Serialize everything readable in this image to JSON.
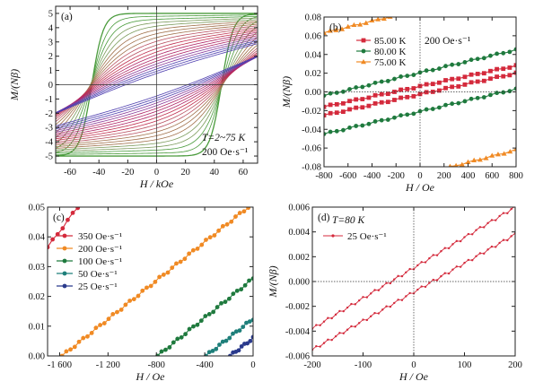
{
  "chart_data": [
    {
      "type": "line",
      "panel_label": "(a)",
      "xlabel": "H / kOe",
      "ylabel": "M/(Nβ)",
      "xlim": [
        -70,
        70
      ],
      "ylim": [
        -5.5,
        5.5
      ],
      "xticks": [
        -60,
        -40,
        -20,
        0,
        20,
        40,
        60
      ],
      "yticks": [
        -5,
        -4,
        -3,
        -2,
        -1,
        0,
        1,
        2,
        3,
        4,
        5
      ],
      "grid": false,
      "annotations": [
        "T=2~75 K",
        "200 Oe·s⁻¹"
      ],
      "loop_family": {
        "count": 20,
        "outer_saturation": 5.0,
        "outer_coercive_field": 45,
        "inner_slope_at_70kOe": 1.8,
        "colors": [
          "#4a9b3c",
          "#7a9a5a",
          "#a0704a",
          "#b85060",
          "#c03050",
          "#b02868",
          "#8a3a9a",
          "#5040b0"
        ]
      }
    },
    {
      "type": "line",
      "panel_label": "(b)",
      "xlabel": "H / Oe",
      "ylabel": "M/(Nβ)",
      "xlim": [
        -800,
        800
      ],
      "ylim": [
        -0.08,
        0.08
      ],
      "xticks": [
        -800,
        -600,
        -400,
        -200,
        0,
        200,
        400,
        600,
        800
      ],
      "yticks": [
        -0.08,
        -0.06,
        -0.04,
        -0.02,
        0.0,
        0.02,
        0.04,
        0.06,
        0.08
      ],
      "ytick_labels": [
        "-0.08",
        "-0.06",
        "-0.04",
        "-0.02",
        "0.00",
        "0.02",
        "0.04",
        "0.06",
        "0.08"
      ],
      "legend_position": "top-left",
      "annotations": [
        "200 Oe·s⁻¹"
      ],
      "series": [
        {
          "name": "85.00 K",
          "color": "#d42a3c",
          "marker": "square",
          "up": {
            "x": [
              -800,
              800
            ],
            "y": [
              -0.025,
              0.02
            ]
          },
          "down": {
            "x": [
              -800,
              800
            ],
            "y": [
              -0.016,
              0.028
            ]
          }
        },
        {
          "name": "80.00 K",
          "color": "#1f7a3e",
          "marker": "circle",
          "up": {
            "x": [
              -800,
              800
            ],
            "y": [
              -0.045,
              0.003
            ]
          },
          "down": {
            "x": [
              -800,
              800
            ],
            "y": [
              -0.004,
              0.045
            ]
          }
        },
        {
          "name": "75.00 K",
          "color": "#f08a24",
          "marker": "triangle",
          "up": {
            "x": [
              200,
              800
            ],
            "y": [
              -0.082,
              -0.062
            ]
          },
          "down": {
            "x": [
              -800,
              -200
            ],
            "y": [
              0.063,
              0.082
            ]
          }
        }
      ]
    },
    {
      "type": "line",
      "panel_label": "(c)",
      "xlabel": "H / Oe",
      "ylabel": "",
      "xlim": [
        -1700,
        0
      ],
      "ylim": [
        0,
        0.05
      ],
      "xticks": [
        -1600,
        -1200,
        -800,
        -400,
        0
      ],
      "xtick_labels": [
        "-1 600",
        "-1 200",
        "-800",
        "-400",
        "0"
      ],
      "yticks": [
        0,
        0.01,
        0.02,
        0.03,
        0.04,
        0.05
      ],
      "ytick_labels": [
        "0.00",
        "0.01",
        "0.02",
        "0.03",
        "0.04",
        "0.05"
      ],
      "legend_position": "top-left",
      "series": [
        {
          "name": "350 Oe·s⁻¹",
          "color": "#d42a3c",
          "x": [
            -1700,
            -1450
          ],
          "y": [
            0.0365,
            0.05
          ]
        },
        {
          "name": "200 Oe·s⁻¹",
          "color": "#f08a24",
          "x": [
            -1580,
            -40
          ],
          "y": [
            0.0,
            0.05
          ]
        },
        {
          "name": "100 Oe·s⁻¹",
          "color": "#1f7a3e",
          "x": [
            -790,
            0
          ],
          "y": [
            0.0,
            0.026
          ]
        },
        {
          "name": "50 Oe·s⁻¹",
          "color": "#1e7f7a",
          "x": [
            -390,
            0
          ],
          "y": [
            0.0,
            0.0125
          ]
        },
        {
          "name": "25 Oe·s⁻¹",
          "color": "#2a3a8c",
          "x": [
            -190,
            0
          ],
          "y": [
            0.0,
            0.006
          ]
        }
      ]
    },
    {
      "type": "line",
      "panel_label": "(d)",
      "xlabel": "H / Oe",
      "ylabel": "M/(Nβ)",
      "xlim": [
        -200,
        200
      ],
      "ylim": [
        -0.006,
        0.006
      ],
      "xticks": [
        -200,
        -100,
        0,
        100,
        200
      ],
      "yticks": [
        -0.006,
        -0.004,
        -0.002,
        0.0,
        0.002,
        0.004,
        0.006
      ],
      "ytick_labels": [
        "-0.006",
        "-0.004",
        "-0.002",
        "0.000",
        "0.002",
        "0.004",
        "0.006"
      ],
      "legend_position": "top-left",
      "annotations": [
        "T=80 K"
      ],
      "series": [
        {
          "name": "25 Oe·s⁻¹",
          "color": "#d42a3c",
          "up": {
            "x": [
              -200,
              200
            ],
            "y": [
              -0.0055,
              0.0038
            ]
          },
          "down": {
            "x": [
              -200,
              200
            ],
            "y": [
              -0.0038,
              0.006
            ]
          }
        }
      ]
    }
  ]
}
